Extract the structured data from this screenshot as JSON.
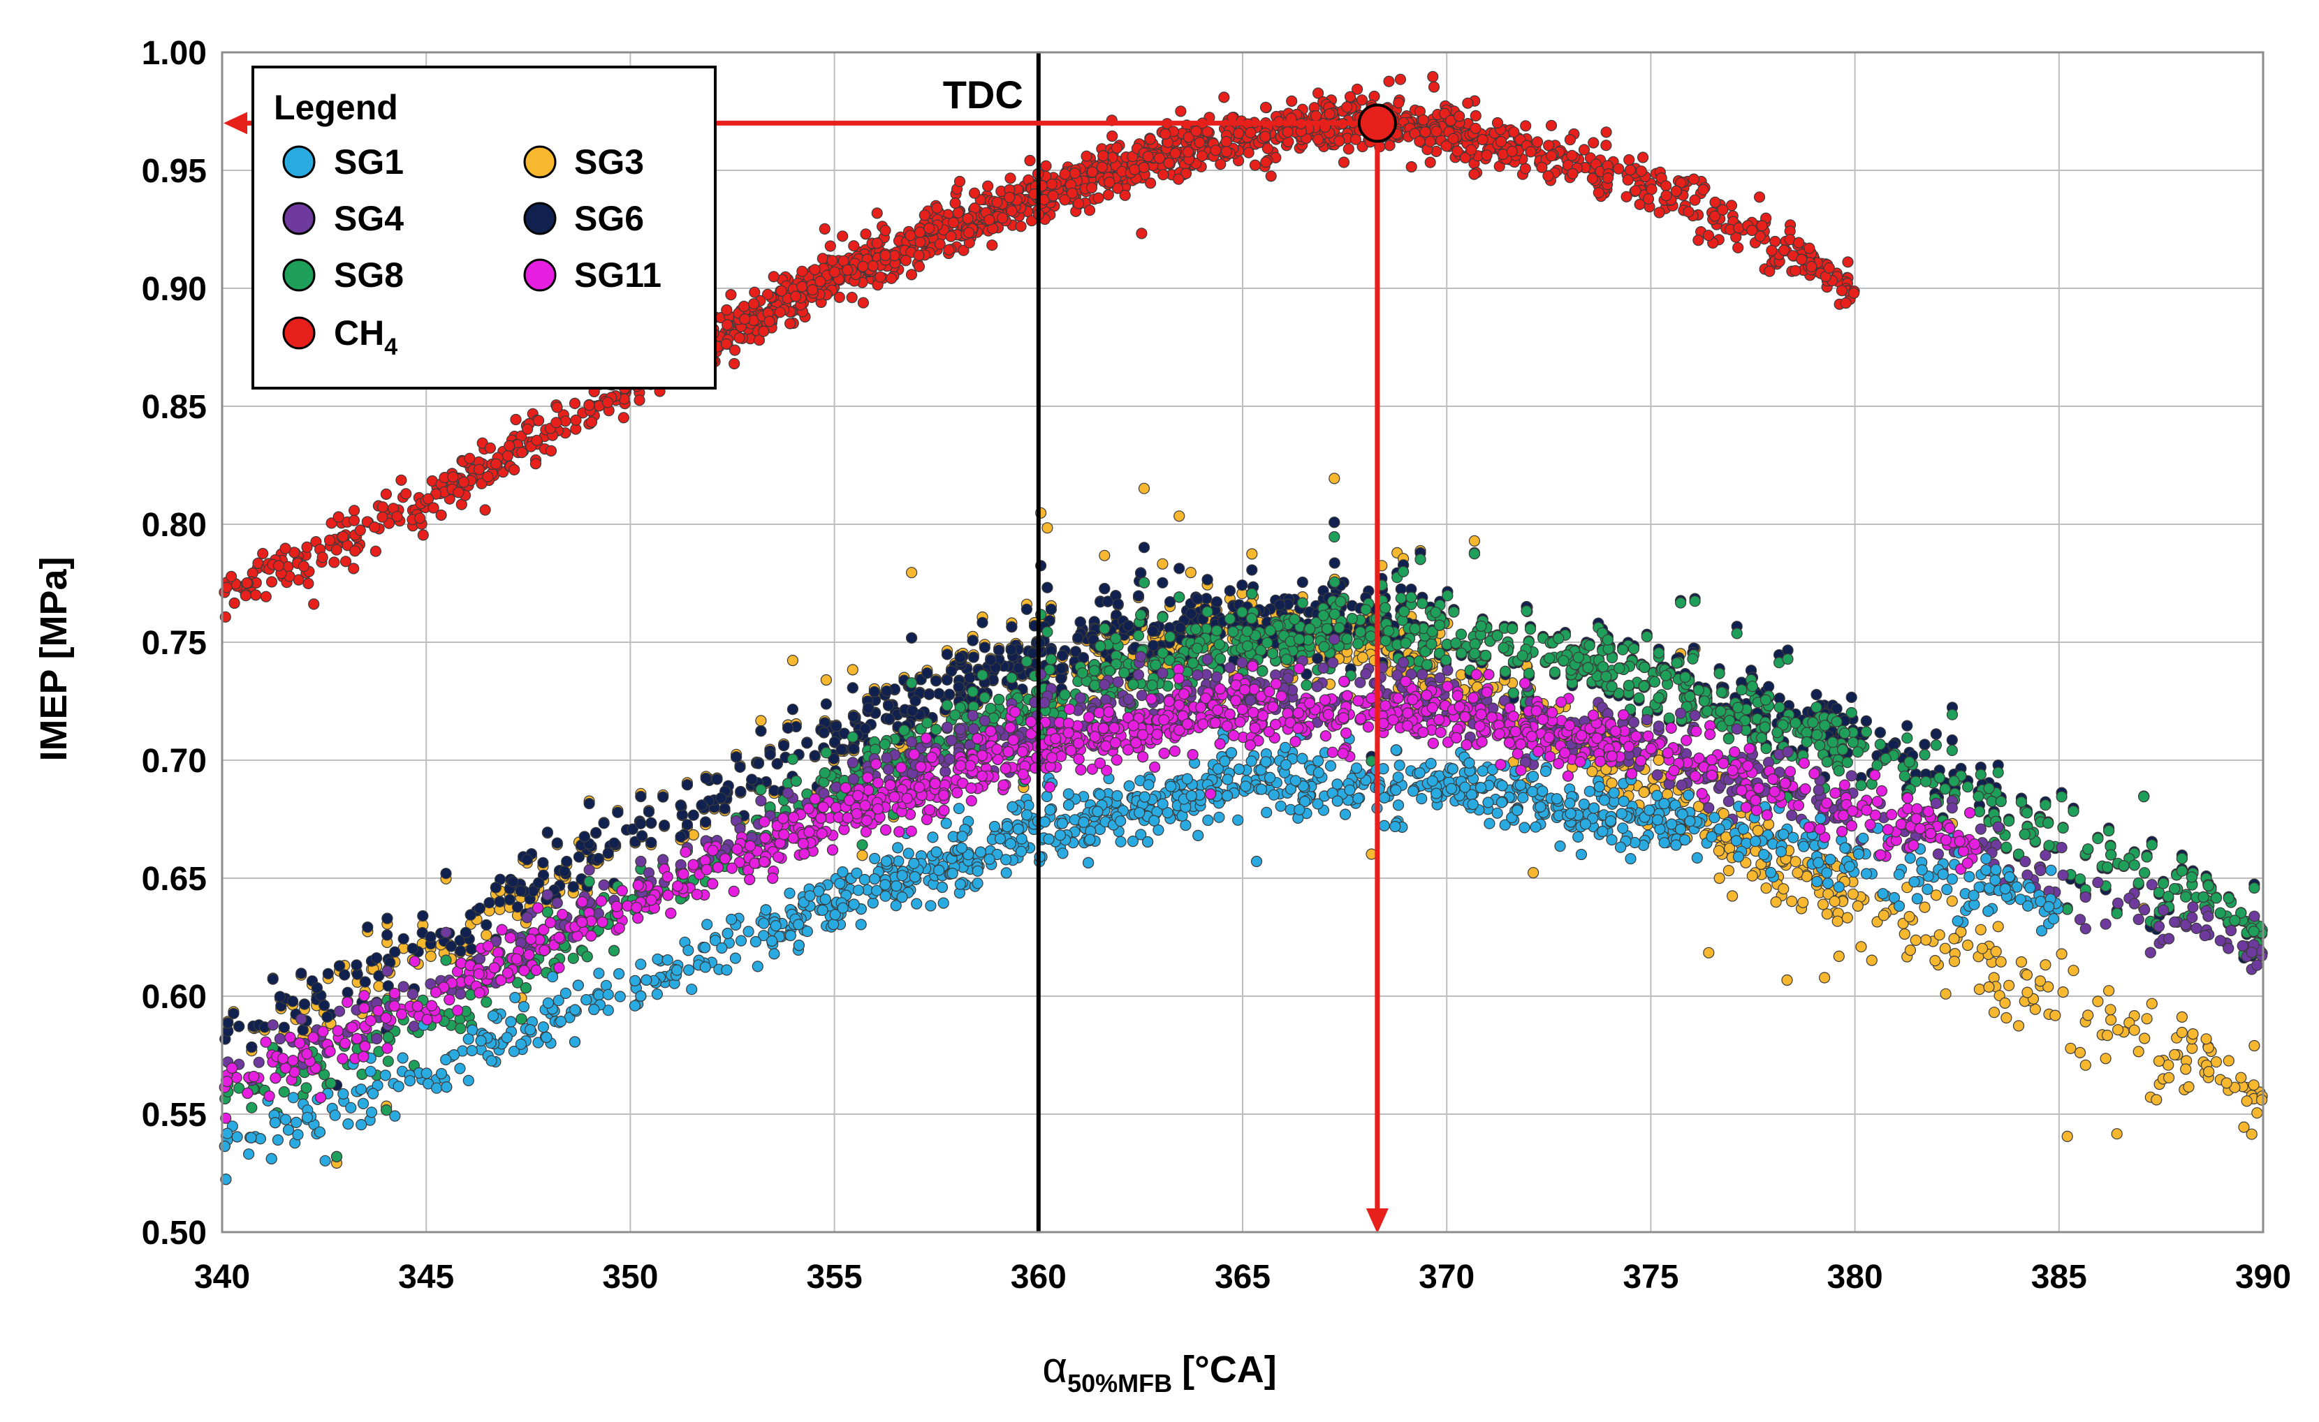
{
  "chart_data": {
    "type": "scatter",
    "title": "",
    "xlabel": "α",
    "xlabel_sub": "50%MFB",
    "xlabel_unit": "[°CA]",
    "ylabel": "IMEP [MPa]",
    "xlim": [
      340,
      390
    ],
    "ylim": [
      0.5,
      1.0
    ],
    "xticks": [
      "340",
      "345",
      "350",
      "355",
      "360",
      "365",
      "370",
      "375",
      "380",
      "385",
      "390"
    ],
    "yticks": [
      "0.50",
      "0.55",
      "0.60",
      "0.65",
      "0.70",
      "0.75",
      "0.80",
      "0.85",
      "0.90",
      "0.95",
      "1.00"
    ],
    "grid": true,
    "legend": {
      "title": "Legend",
      "position": "top-left",
      "entries": [
        {
          "name": "SG1",
          "color": "#29abe2"
        },
        {
          "name": "SG3",
          "color": "#f7b82f"
        },
        {
          "name": "SG4",
          "color": "#6f3a9e"
        },
        {
          "name": "SG6",
          "color": "#10214f"
        },
        {
          "name": "SG8",
          "color": "#1ea05a"
        },
        {
          "name": "SG11",
          "color": "#e61ee0"
        },
        {
          "name": "CH",
          "sub": "4",
          "color": "#e8201c"
        }
      ]
    },
    "annotations": {
      "tdc_label": "TDC",
      "tdc_x": 360,
      "optimum_point": {
        "x": 368.3,
        "y": 0.97
      },
      "arrow_color": "#e8201c"
    },
    "series": [
      {
        "name": "CH4",
        "color": "#e8201c",
        "trend": {
          "x": [
            340,
            345,
            350,
            355,
            360,
            365,
            368,
            370,
            375,
            378,
            380
          ],
          "y": [
            0.77,
            0.81,
            0.86,
            0.905,
            0.94,
            0.965,
            0.97,
            0.968,
            0.945,
            0.92,
            0.9
          ]
        }
      },
      {
        "name": "SG3",
        "color": "#f7b82f",
        "trend": {
          "x": [
            340,
            345,
            350,
            355,
            360,
            365,
            370,
            375,
            380,
            385,
            390
          ],
          "y": [
            0.58,
            0.62,
            0.67,
            0.71,
            0.745,
            0.755,
            0.74,
            0.69,
            0.64,
            0.6,
            0.56
          ]
        }
      },
      {
        "name": "SG6",
        "color": "#10214f",
        "trend": {
          "x": [
            340,
            345,
            350,
            355,
            360,
            365,
            370,
            375,
            380,
            385,
            390
          ],
          "y": [
            0.58,
            0.625,
            0.67,
            0.71,
            0.745,
            0.76,
            0.755,
            0.735,
            0.71,
            0.67,
            0.63
          ]
        }
      },
      {
        "name": "SG8",
        "color": "#1ea05a",
        "trend": {
          "x": [
            340,
            345,
            350,
            355,
            360,
            365,
            370,
            375,
            380,
            385,
            390
          ],
          "y": [
            0.555,
            0.59,
            0.64,
            0.69,
            0.725,
            0.75,
            0.755,
            0.735,
            0.705,
            0.67,
            0.63
          ]
        }
      },
      {
        "name": "SG4",
        "color": "#6f3a9e",
        "trend": {
          "x": [
            340,
            345,
            350,
            355,
            360,
            365,
            370,
            375,
            380,
            385,
            390
          ],
          "y": [
            0.565,
            0.605,
            0.645,
            0.685,
            0.715,
            0.73,
            0.725,
            0.705,
            0.68,
            0.65,
            0.62
          ]
        }
      },
      {
        "name": "SG1",
        "color": "#29abe2",
        "trend": {
          "x": [
            340,
            345,
            350,
            355,
            360,
            365,
            370,
            375,
            380,
            385
          ],
          "y": [
            0.535,
            0.57,
            0.605,
            0.64,
            0.67,
            0.69,
            0.69,
            0.675,
            0.66,
            0.64
          ]
        }
      },
      {
        "name": "SG11",
        "color": "#e61ee0",
        "trend": {
          "x": [
            340,
            345,
            350,
            355,
            360,
            365,
            370,
            375,
            380,
            383
          ],
          "y": [
            0.56,
            0.6,
            0.64,
            0.675,
            0.705,
            0.72,
            0.72,
            0.705,
            0.68,
            0.665
          ]
        }
      }
    ]
  }
}
